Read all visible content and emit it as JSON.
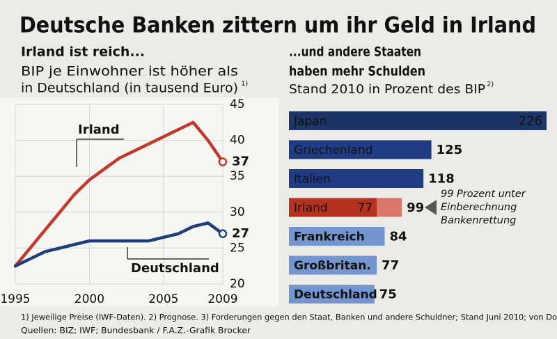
{
  "title": "Deutsche Banken zittern um ihr Geld in Irland",
  "chart_data": [
    {
      "type": "line",
      "title": "Irland ist reich...",
      "subtitle": [
        "BIP je Einwohner ist höher als",
        "in Deutschland (in tausend Euro)"
      ],
      "subtitle_note": "1)",
      "x": [
        1995,
        1996,
        1997,
        1998,
        1999,
        2000,
        2001,
        2002,
        2003,
        2004,
        2005,
        2006,
        2007,
        2008,
        2009
      ],
      "series": [
        {
          "name": "Irland",
          "color": "#c0392b",
          "values": [
            22.5,
            25,
            27.5,
            30,
            32.5,
            34.5,
            36,
            37.5,
            38.5,
            39.5,
            40.5,
            41.5,
            42.5,
            40,
            37
          ]
        },
        {
          "name": "Deutschland",
          "color": "#1f3f7a",
          "values": [
            22.5,
            23.5,
            24.5,
            25,
            25.5,
            26,
            26,
            26,
            26,
            26,
            26.5,
            27,
            28,
            28.5,
            27
          ]
        }
      ],
      "xlim": [
        1995,
        2009
      ],
      "xticks": [
        1995,
        2000,
        2005,
        2009
      ],
      "ylim": [
        20,
        45
      ],
      "yticks": [
        20,
        25,
        30,
        35,
        40,
        45
      ],
      "grid": true
    },
    {
      "type": "bar",
      "orientation": "horizontal",
      "title": [
        "...und andere Staaten",
        "haben mehr Schulden"
      ],
      "subtitle": "Stand 2010 in Prozent des BIP",
      "subtitle_note": "2)",
      "categories": [
        "Japan",
        "Griechenland",
        "Italien",
        "Irland",
        "Frankreich",
        "Großbritan.",
        "Deutschland"
      ],
      "values": [
        226,
        125,
        118,
        77,
        84,
        77,
        75
      ],
      "colors": [
        "#1d3466",
        "#1f3c85",
        "#1f3c85",
        "#b5321f",
        "#7396d0",
        "#7396d0",
        "#7396d0"
      ],
      "values_with_bank_rescue": [
        null,
        null,
        null,
        99,
        null,
        null,
        null
      ],
      "annotation": [
        "99 Prozent unter",
        "Einberechnung",
        "Bankenrettung"
      ]
    }
  ],
  "footnotes": [
    "1) Jeweilige Preise (IWF-Daten). 2) Prognose. 3) Forderungen gegen den Staat, Banken und andere Schuldner; Stand Juni 2010; von Do",
    "Quellen: BIZ; IWF; Bundesbank / F.A.Z.-Grafik Brocker"
  ]
}
